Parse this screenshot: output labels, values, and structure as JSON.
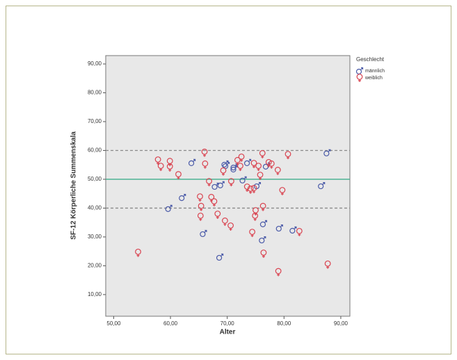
{
  "chart_data": {
    "type": "scatter",
    "xlabel": "Alter",
    "ylabel": "SF-12 Körperliche Summenskala",
    "legend_title": "Geschlecht",
    "xlim": [
      48.6,
      91.6
    ],
    "ylim": [
      2.5,
      92.9
    ],
    "xticks": [
      {
        "value": 50,
        "label": "50,00"
      },
      {
        "value": 60,
        "label": "60,00"
      },
      {
        "value": 70,
        "label": "70,00"
      },
      {
        "value": 80,
        "label": "80,00"
      },
      {
        "value": 90,
        "label": "90,00"
      }
    ],
    "yticks": [
      {
        "value": 10,
        "label": "10,00"
      },
      {
        "value": 20,
        "label": "20,00"
      },
      {
        "value": 30,
        "label": "30,00"
      },
      {
        "value": 40,
        "label": "40,00"
      },
      {
        "value": 50,
        "label": "50,00"
      },
      {
        "value": 60,
        "label": "60,00"
      },
      {
        "value": 70,
        "label": "70,00"
      },
      {
        "value": 80,
        "label": "80,00"
      },
      {
        "value": 90,
        "label": "90,00"
      }
    ],
    "hlines": [
      {
        "value": 60,
        "color": "#8a8a8a",
        "dashed": true
      },
      {
        "value": 50,
        "color": "#3fae8c",
        "dashed": false
      },
      {
        "value": 40,
        "color": "#8a8a8a",
        "dashed": true
      }
    ],
    "series": [
      {
        "name": "männlich",
        "color": "#4a5aa8",
        "symbol": "male",
        "x": [
          63.8,
          62.1,
          59.7,
          65.8,
          67.9,
          69.6,
          69.8,
          71.2,
          71.2,
          72.8,
          73.6,
          75.3,
          76.4,
          76.2,
          76.9,
          79.2,
          81.6,
          87.6,
          86.6,
          68.7,
          68.9
        ],
        "values": [
          55.8,
          43.7,
          39.9,
          31.2,
          47.6,
          55.3,
          54.8,
          53.6,
          54.3,
          49.8,
          55.8,
          47.8,
          34.6,
          29.0,
          54.6,
          33.1,
          32.4,
          59.2,
          47.8,
          23.0,
          48.1
        ]
      },
      {
        "name": "weiblich",
        "color": "#d9424f",
        "symbol": "female",
        "x": [
          54.3,
          57.8,
          58.3,
          59.9,
          59.9,
          61.4,
          66.0,
          66.1,
          66.8,
          65.2,
          65.4,
          65.3,
          67.2,
          67.7,
          68.3,
          69.6,
          70.6,
          70.7,
          69.3,
          71.8,
          72.5,
          72.3,
          73.5,
          74.1,
          74.7,
          74.7,
          75.5,
          75.0,
          74.9,
          74.4,
          75.8,
          76.2,
          76.3,
          76.4,
          77.3,
          77.8,
          78.9,
          79.0,
          80.7,
          79.7,
          82.7,
          87.7
        ],
        "values": [
          24.5,
          56.5,
          54.3,
          56.0,
          54.1,
          51.4,
          59.2,
          55.1,
          49.0,
          43.7,
          40.4,
          37.0,
          43.5,
          42.0,
          37.7,
          35.3,
          33.6,
          49.0,
          52.7,
          56.3,
          57.5,
          54.3,
          47.1,
          46.4,
          46.6,
          55.3,
          54.3,
          38.9,
          37.0,
          31.4,
          51.2,
          58.7,
          40.4,
          24.2,
          55.6,
          55.1,
          52.9,
          17.8,
          58.4,
          45.9,
          31.7,
          20.4
        ]
      }
    ]
  }
}
